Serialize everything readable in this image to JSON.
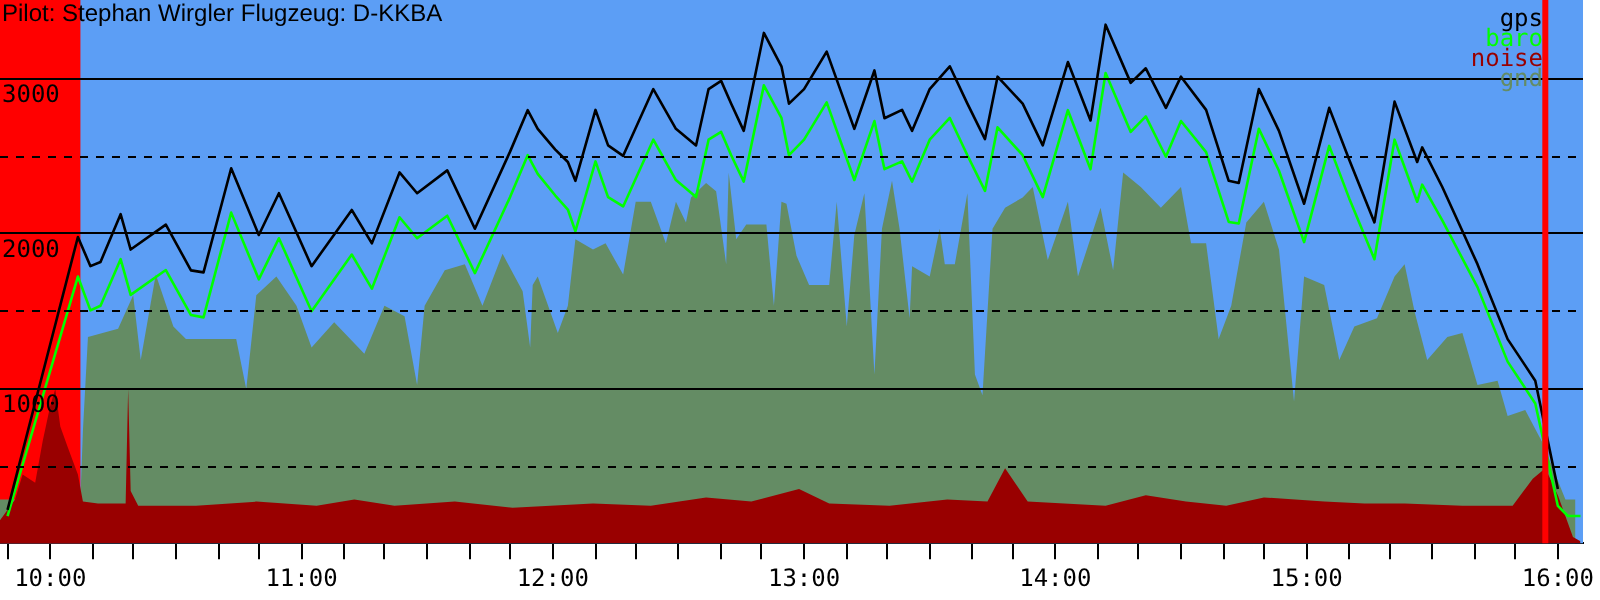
{
  "chart_data": {
    "type": "line",
    "title": "Pilot: Stephan Wirgler Flugzeug: D-KKBA",
    "legend": "top right",
    "grid": "y",
    "xlim": [
      9.8,
      16.1
    ],
    "xticks": [
      {
        "value": 9.83,
        "label": null
      },
      {
        "value": 10,
        "label": "10:00"
      },
      {
        "value": 10.17,
        "label": null
      },
      {
        "value": 10.33,
        "label": null
      },
      {
        "value": 10.5,
        "label": null
      },
      {
        "value": 10.67,
        "label": null
      },
      {
        "value": 10.83,
        "label": null
      },
      {
        "value": 11,
        "label": "11:00"
      },
      {
        "value": 11.17,
        "label": null
      },
      {
        "value": 11.33,
        "label": null
      },
      {
        "value": 11.5,
        "label": null
      },
      {
        "value": 11.67,
        "label": null
      },
      {
        "value": 11.83,
        "label": null
      },
      {
        "value": 12,
        "label": "12:00"
      },
      {
        "value": 12.17,
        "label": null
      },
      {
        "value": 12.33,
        "label": null
      },
      {
        "value": 12.5,
        "label": null
      },
      {
        "value": 12.67,
        "label": null
      },
      {
        "value": 12.83,
        "label": null
      },
      {
        "value": 13,
        "label": "13:00"
      },
      {
        "value": 13.17,
        "label": null
      },
      {
        "value": 13.33,
        "label": null
      },
      {
        "value": 13.5,
        "label": null
      },
      {
        "value": 13.67,
        "label": null
      },
      {
        "value": 13.83,
        "label": null
      },
      {
        "value": 14,
        "label": "14:00"
      },
      {
        "value": 14.17,
        "label": null
      },
      {
        "value": 14.33,
        "label": null
      },
      {
        "value": 14.5,
        "label": null
      },
      {
        "value": 14.67,
        "label": null
      },
      {
        "value": 14.83,
        "label": null
      },
      {
        "value": 15,
        "label": "15:00"
      },
      {
        "value": 15.17,
        "label": null
      },
      {
        "value": 15.33,
        "label": null
      },
      {
        "value": 15.5,
        "label": null
      },
      {
        "value": 15.67,
        "label": null
      },
      {
        "value": 15.83,
        "label": null
      },
      {
        "value": 16,
        "label": "16:00"
      }
    ],
    "ylim": [
      0,
      3500
    ],
    "yticks": [
      {
        "value": 500,
        "label": null
      },
      1000,
      {
        "value": 1500,
        "label": null
      },
      2000,
      {
        "value": 2500,
        "label": null
      },
      3000
    ],
    "bands": [
      {
        "axis": "x",
        "from": 9.8,
        "to": 10.12,
        "color": "#ff0000"
      }
    ],
    "ref_lines": [
      {
        "axis": "x",
        "value": 15.95,
        "color": "#ff0000"
      }
    ],
    "series": [
      {
        "name": "gnd",
        "type": "area",
        "color": "#648c64",
        "x": [
          9.8,
          10.12,
          10.13,
          10.15,
          10.27,
          10.33,
          10.36,
          10.42,
          10.49,
          10.54,
          10.74,
          10.78,
          10.82,
          10.9,
          10.98,
          11.04,
          11.13,
          11.25,
          11.33,
          11.41,
          11.46,
          11.49,
          11.57,
          11.65,
          11.72,
          11.8,
          11.88,
          11.91,
          11.92,
          11.94,
          12.02,
          12.06,
          12.09,
          12.16,
          12.21,
          12.28,
          12.33,
          12.39,
          12.45,
          12.49,
          12.53,
          12.55,
          12.61,
          12.65,
          12.69,
          12.7,
          12.73,
          12.77,
          12.85,
          12.88,
          12.91,
          12.93,
          12.97,
          13.02,
          13.1,
          13.13,
          13.17,
          13.2,
          13.24,
          13.28,
          13.31,
          13.35,
          13.38,
          13.42,
          13.43,
          13.5,
          13.54,
          13.56,
          13.6,
          13.65,
          13.68,
          13.71,
          13.75,
          13.8,
          13.87,
          13.91,
          13.97,
          14.05,
          14.09,
          14.18,
          14.23,
          14.27,
          14.34,
          14.42,
          14.5,
          14.54,
          14.6,
          14.65,
          14.7,
          14.76,
          14.83,
          14.89,
          14.95,
          14.99,
          15.07,
          15.13,
          15.19,
          15.28,
          15.35,
          15.39,
          15.43,
          15.48,
          15.56,
          15.62,
          15.68,
          15.76,
          15.8,
          15.87,
          15.94,
          15.96,
          16.03,
          16.07
        ],
        "values": [
          282,
          282,
          725,
          1329,
          1382,
          1597,
          1181,
          1731,
          1396,
          1315,
          1315,
          993,
          1597,
          1718,
          1530,
          1261,
          1423,
          1221,
          1530,
          1463,
          1020,
          1530,
          1758,
          1798,
          1530,
          1865,
          1624,
          1261,
          1664,
          1718,
          1355,
          1530,
          1959,
          1892,
          1932,
          1731,
          2200,
          2200,
          1932,
          2200,
          2067,
          2228,
          2321,
          2268,
          1798,
          2389,
          1959,
          2053,
          2053,
          1530,
          2200,
          2187,
          1852,
          1664,
          1664,
          2200,
          1396,
          1986,
          2255,
          1087,
          2026,
          2335,
          2026,
          1449,
          1785,
          1718,
          2026,
          1798,
          1798,
          2255,
          1087,
          953,
          2026,
          2161,
          2228,
          2295,
          1825,
          2200,
          1718,
          2161,
          1758,
          2389,
          2295,
          2161,
          2295,
          1932,
          1932,
          1315,
          1530,
          2067,
          2200,
          1892,
          913,
          1718,
          1664,
          1181,
          1396,
          1449,
          1718,
          1798,
          1490,
          1181,
          1329,
          1355,
          1020,
          1047,
          819,
          859,
          644,
          null,
          282,
          282
        ]
      },
      {
        "name": "noise",
        "type": "area",
        "color": "#990000",
        "x": [
          9.8,
          9.86,
          9.89,
          9.94,
          9.97,
          10,
          10.02,
          10.04,
          10.07,
          10.11,
          10.13,
          10.19,
          10.3,
          10.31,
          10.32,
          10.35,
          10.58,
          10.82,
          11.06,
          11.21,
          11.37,
          11.61,
          11.84,
          12.16,
          12.39,
          12.61,
          12.79,
          12.98,
          13.1,
          13.34,
          13.57,
          13.73,
          13.8,
          13.89,
          14.2,
          14.36,
          14.52,
          14.68,
          14.83,
          15.07,
          15.23,
          15.39,
          15.62,
          15.82,
          15.9,
          15.95,
          16,
          16.06,
          16.09
        ],
        "values": [
          148,
          282,
          443,
          389,
          658,
          886,
          993,
          752,
          617,
          443,
          268,
          255,
          255,
          993,
          336,
          242,
          242,
          268,
          242,
          282,
          242,
          268,
          228,
          255,
          242,
          295,
          268,
          349,
          255,
          242,
          282,
          268,
          483,
          268,
          242,
          309,
          268,
          242,
          295,
          268,
          255,
          255,
          242,
          242,
          416,
          483,
          309,
          40,
          13
        ]
      },
      {
        "name": "baro",
        "type": "line",
        "color": "#00ff00",
        "x": [
          9.83,
          10.11,
          10.16,
          10.2,
          10.28,
          10.32,
          10.46,
          10.56,
          10.61,
          10.72,
          10.83,
          10.91,
          11.04,
          11.2,
          11.28,
          11.39,
          11.46,
          11.58,
          11.69,
          11.83,
          11.9,
          11.94,
          12.01,
          12.06,
          12.09,
          12.17,
          12.22,
          12.28,
          12.4,
          12.49,
          12.57,
          12.62,
          12.67,
          12.71,
          12.76,
          12.84,
          12.91,
          12.94,
          13,
          13.09,
          13.2,
          13.28,
          13.32,
          13.39,
          13.43,
          13.5,
          13.58,
          13.65,
          13.72,
          13.77,
          13.87,
          13.95,
          14.05,
          14.14,
          14.2,
          14.3,
          14.36,
          14.44,
          14.5,
          14.6,
          14.69,
          14.73,
          14.81,
          14.89,
          14.99,
          15.09,
          15.17,
          15.27,
          15.35,
          15.44,
          15.46,
          15.54,
          15.68,
          15.8,
          15.91,
          16,
          16.04,
          16.09
        ],
        "values": [
          175,
          1718,
          1500,
          1530,
          1830,
          1600,
          1760,
          1470,
          1455,
          2130,
          1700,
          1965,
          1495,
          1860,
          1640,
          2100,
          1965,
          2110,
          1740,
          2230,
          2500,
          2380,
          2240,
          2150,
          2010,
          2460,
          2230,
          2170,
          2600,
          2340,
          2230,
          2600,
          2650,
          2500,
          2330,
          2950,
          2740,
          2500,
          2600,
          2840,
          2340,
          2720,
          2410,
          2460,
          2330,
          2600,
          2740,
          2500,
          2270,
          2680,
          2500,
          2230,
          2790,
          2410,
          3030,
          2650,
          2750,
          2490,
          2720,
          2520,
          2070,
          2060,
          2670,
          2400,
          1940,
          2560,
          2220,
          1830,
          2600,
          2200,
          2310,
          2080,
          1650,
          1170,
          900,
          240,
          175,
          175
        ]
      },
      {
        "name": "gps",
        "type": "line",
        "color": "#000000",
        "x": [
          9.83,
          10.11,
          10.16,
          10.2,
          10.28,
          10.32,
          10.46,
          10.56,
          10.61,
          10.72,
          10.83,
          10.91,
          11.04,
          11.2,
          11.28,
          11.39,
          11.46,
          11.58,
          11.69,
          11.83,
          11.9,
          11.94,
          12.01,
          12.06,
          12.09,
          12.17,
          12.22,
          12.28,
          12.4,
          12.49,
          12.57,
          12.62,
          12.67,
          12.71,
          12.76,
          12.84,
          12.91,
          12.94,
          13,
          13.09,
          13.2,
          13.28,
          13.32,
          13.39,
          13.43,
          13.5,
          13.58,
          13.65,
          13.72,
          13.77,
          13.87,
          13.95,
          14.05,
          14.14,
          14.2,
          14.3,
          14.36,
          14.44,
          14.5,
          14.6,
          14.69,
          14.73,
          14.81,
          14.89,
          14.99,
          15.09,
          15.17,
          15.27,
          15.35,
          15.44,
          15.46,
          15.54,
          15.68,
          15.8,
          15.91,
          16
        ],
        "values": [
          215,
          1973,
          1785,
          1812,
          2120,
          1892,
          2053,
          1758,
          1745,
          2416,
          1986,
          2255,
          1785,
          2147,
          1932,
          2389,
          2255,
          2402,
          2026,
          2523,
          2790,
          2670,
          2536,
          2456,
          2335,
          2792,
          2563,
          2496,
          2926,
          2670,
          2563,
          2926,
          2979,
          2832,
          2657,
          3288,
          3073,
          2832,
          2926,
          3167,
          2670,
          3046,
          2738,
          2792,
          2657,
          2926,
          3073,
          2832,
          2604,
          3006,
          2832,
          2563,
          3100,
          2724,
          3341,
          2966,
          3060,
          2805,
          3006,
          2792,
          2335,
          2321,
          2926,
          2657,
          2187,
          2805,
          2469,
          2067,
          2845,
          2456,
          2550,
          2295,
          1798,
          1315,
          1047,
          349
        ]
      }
    ]
  }
}
